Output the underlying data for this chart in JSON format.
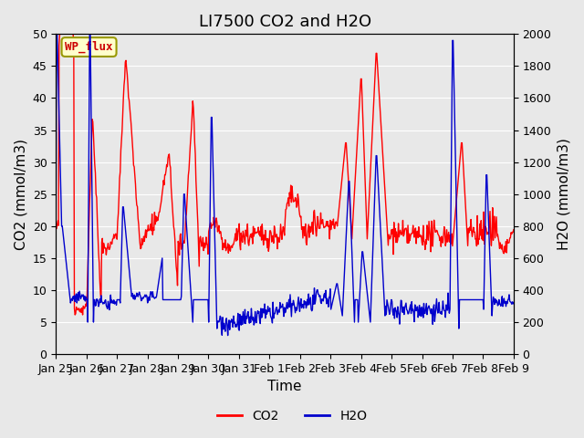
{
  "title": "LI7500 CO2 and H2O",
  "xlabel": "Time",
  "ylabel_left": "CO2 (mmol/m3)",
  "ylabel_right": "H2O (mmol/m3)",
  "ylim_left": [
    0,
    50
  ],
  "ylim_right": [
    0,
    2000
  ],
  "xtick_labels": [
    "Jan 25",
    "Jan 26",
    "Jan 27",
    "Jan 28",
    "Jan 29",
    "Jan 30",
    "Jan 31",
    "Feb 1",
    "Feb 2",
    "Feb 3",
    "Feb 4",
    "Feb 5",
    "Feb 6",
    "Feb 7",
    "Feb 8",
    "Feb 9"
  ],
  "annotation_text": "WP_flux",
  "co2_color": "#FF0000",
  "h2o_color": "#0000CC",
  "legend_co2": "CO2",
  "legend_h2o": "H2O",
  "title_fontsize": 13,
  "axis_label_fontsize": 11,
  "tick_fontsize": 9
}
